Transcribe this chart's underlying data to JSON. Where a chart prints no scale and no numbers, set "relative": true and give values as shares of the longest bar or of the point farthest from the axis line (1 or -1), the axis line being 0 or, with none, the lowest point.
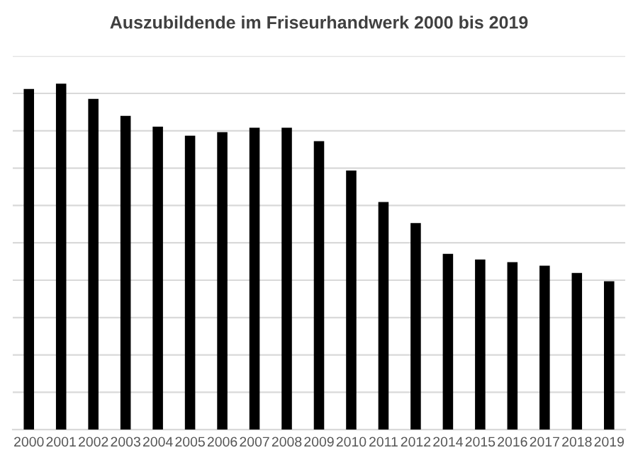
{
  "chart_data": {
    "type": "bar",
    "title": "Auszubildende im Friseurhandwerk 2000 bis 2019",
    "categories": [
      "2000",
      "2001",
      "2002",
      "2003",
      "2004",
      "2005",
      "2006",
      "2007",
      "2008",
      "2009",
      "2010",
      "2011",
      "2012",
      "2014",
      "2015",
      "2016",
      "2017",
      "2018",
      "2019"
    ],
    "values": [
      0.985,
      1,
      0.956,
      0.907,
      0.876,
      0.85,
      0.86,
      0.873,
      0.873,
      0.834,
      0.749,
      0.658,
      0.597,
      0.508,
      0.492,
      0.484,
      0.474,
      0.453,
      0.429
    ],
    "color": "#000000",
    "relative": true,
    "grid": "y"
  }
}
